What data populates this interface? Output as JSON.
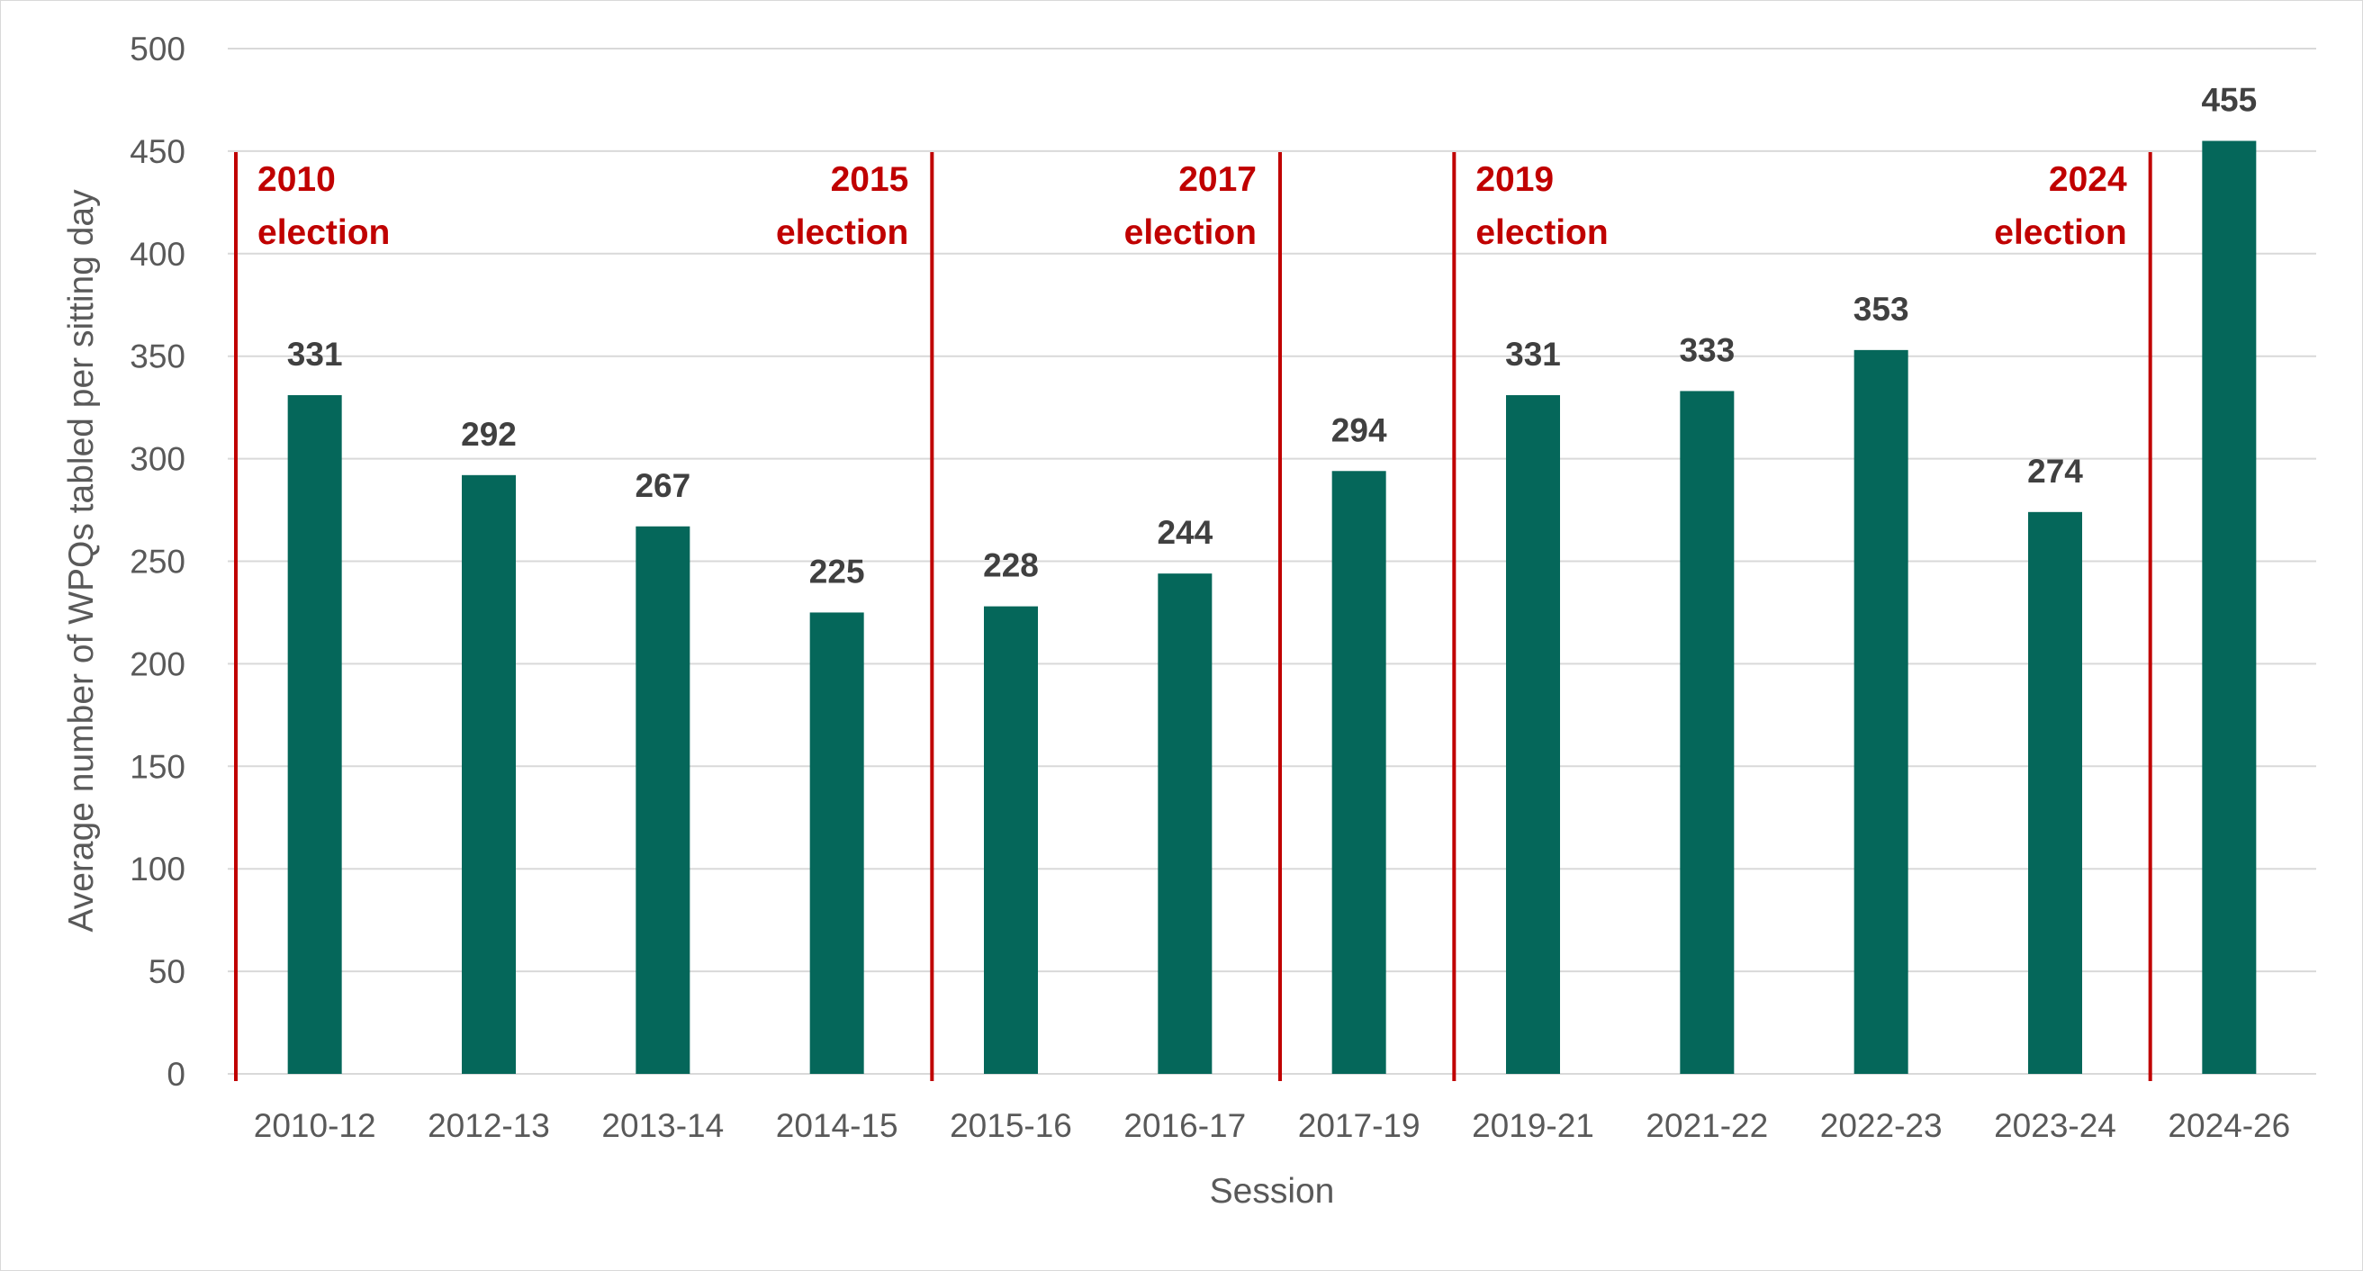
{
  "colors": {
    "bar": "#05675A",
    "election_line": "#C00000",
    "grid": "#d9d9d9",
    "text": "#595959",
    "data_label": "#404040"
  },
  "chart_data": {
    "type": "bar",
    "xlabel": "Session",
    "ylabel": "Average number of WPQs tabled per sitting day",
    "ylim": [
      0,
      500
    ],
    "yticks": [
      0,
      50,
      100,
      150,
      200,
      250,
      300,
      350,
      400,
      450,
      500
    ],
    "grid": true,
    "categories": [
      "2010-12",
      "2012-13",
      "2013-14",
      "2014-15",
      "2015-16",
      "2016-17",
      "2017-19",
      "2019-21",
      "2021-22",
      "2022-23",
      "2023-24",
      "2024-26"
    ],
    "values": [
      331,
      292,
      267,
      225,
      228,
      244,
      294,
      331,
      333,
      353,
      274,
      455
    ],
    "elections": [
      {
        "year": "2010",
        "text": "election",
        "before_category": 0,
        "align": "right"
      },
      {
        "year": "2015",
        "text": "election",
        "before_category": 4,
        "align": "left"
      },
      {
        "year": "2017",
        "text": "election",
        "before_category": 6,
        "align": "left"
      },
      {
        "year": "2019",
        "text": "election",
        "before_category": 7,
        "align": "right"
      },
      {
        "year": "2024",
        "text": "election",
        "before_category": 11,
        "align": "left"
      }
    ]
  }
}
